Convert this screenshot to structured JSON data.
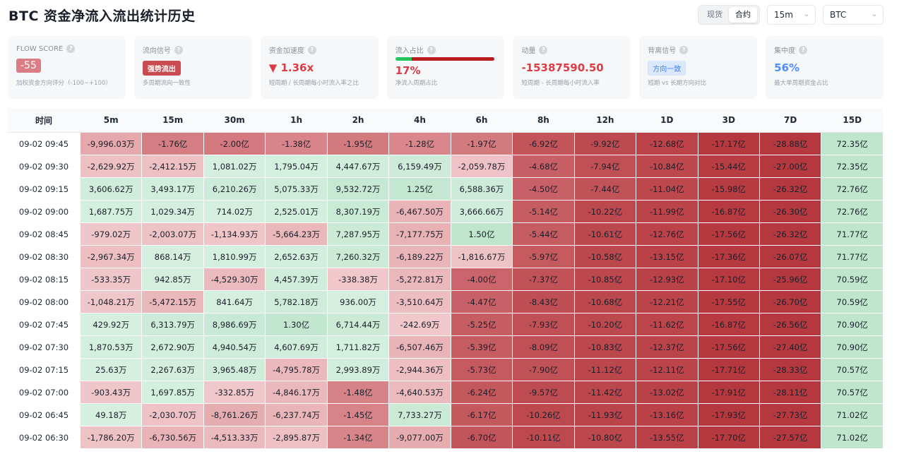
{
  "header": {
    "title": "BTC 资金净流入流出统计历史",
    "market_tabs": [
      {
        "label": "现货",
        "active": false
      },
      {
        "label": "合约",
        "active": true
      }
    ],
    "interval": "15m",
    "symbol": "BTC",
    "chevron_icon": "chevron-down-icon"
  },
  "cards": [
    {
      "id": "flow-score",
      "label": "FLOW SCORE",
      "value": "-55",
      "desc": "加权资金方向评分（-100~+100）",
      "style": "badge-score"
    },
    {
      "id": "flow-signal",
      "label": "流向信号",
      "value": "强势流出",
      "desc": "多周期流向一致性",
      "style": "badge-signal"
    },
    {
      "id": "acceleration",
      "label": "资金加速度",
      "value": "▼ 1.36x",
      "desc": "短周期 / 长周期每小时流入率之比",
      "style": "val-red"
    },
    {
      "id": "inflow-ratio",
      "label": "流入占比",
      "value": "17%",
      "desc": "净流入周期占比",
      "style": "val-red",
      "ratio": 0.17
    },
    {
      "id": "momentum",
      "label": "动量",
      "value": "-15387590.50",
      "desc": "短周期 - 长周期每小时流入率",
      "style": "val-red"
    },
    {
      "id": "divergence",
      "label": "背离信号",
      "value": "方向一致",
      "desc": "短期 vs 长期方向对比",
      "style": "badge-blue"
    },
    {
      "id": "concentration",
      "label": "集中度",
      "value": "56%",
      "desc": "最大单周期资金占比",
      "style": "val-blue"
    }
  ],
  "colors": {
    "negative_strong": "#b5383e",
    "negative_mid": "#dc8e93",
    "negative_light": "#f0c9cc",
    "positive_light": "#d6f0e0",
    "positive_mid": "#bfe5cd"
  },
  "table": {
    "headers": [
      "时间",
      "5m",
      "15m",
      "30m",
      "1h",
      "2h",
      "4h",
      "6h",
      "8h",
      "12h",
      "1D",
      "3D",
      "7D",
      "15D"
    ],
    "rows": [
      {
        "time": "09-02 09:45",
        "cells": [
          "-9,996.03万",
          "-1.76亿",
          "-2.00亿",
          "-1.38亿",
          "-1.95亿",
          "-1.28亿",
          "-1.97亿",
          "-6.92亿",
          "-9.92亿",
          "-12.68亿",
          "-17.17亿",
          "-28.88亿",
          "72.35亿"
        ]
      },
      {
        "time": "09-02 09:30",
        "cells": [
          "-2,629.92万",
          "-2,412.15万",
          "1,081.02万",
          "1,795.04万",
          "4,447.67万",
          "6,159.49万",
          "-2,059.78万",
          "-4.68亿",
          "-7.94亿",
          "-10.84亿",
          "-15.44亿",
          "-27.00亿",
          "72.35亿"
        ]
      },
      {
        "time": "09-02 09:15",
        "cells": [
          "3,606.62万",
          "3,493.17万",
          "6,210.26万",
          "5,075.33万",
          "9,532.72万",
          "1.25亿",
          "6,588.36万",
          "-4.50亿",
          "-7.44亿",
          "-11.04亿",
          "-15.98亿",
          "-26.32亿",
          "72.76亿"
        ]
      },
      {
        "time": "09-02 09:00",
        "cells": [
          "1,687.75万",
          "1,029.34万",
          "714.02万",
          "2,525.01万",
          "8,307.19万",
          "-6,467.50万",
          "3,666.66万",
          "-5.14亿",
          "-10.22亿",
          "-11.99亿",
          "-16.87亿",
          "-26.30亿",
          "72.76亿"
        ]
      },
      {
        "time": "09-02 08:45",
        "cells": [
          "-979.02万",
          "-2,003.07万",
          "-1,134.93万",
          "-5,664.23万",
          "7,287.95万",
          "-7,177.75万",
          "1.50亿",
          "-5.44亿",
          "-10.61亿",
          "-12.76亿",
          "-17.56亿",
          "-26.32亿",
          "71.77亿"
        ]
      },
      {
        "time": "09-02 08:30",
        "cells": [
          "-2,967.34万",
          "868.14万",
          "1,810.99万",
          "2,652.63万",
          "7,260.32万",
          "-6,189.22万",
          "-1,816.67万",
          "-5.97亿",
          "-10.58亿",
          "-13.15亿",
          "-17.36亿",
          "-26.07亿",
          "71.77亿"
        ]
      },
      {
        "time": "09-02 08:15",
        "cells": [
          "-533.35万",
          "942.85万",
          "-4,529.30万",
          "4,457.39万",
          "-338.38万",
          "-5,272.81万",
          "-4.00亿",
          "-7.37亿",
          "-10.85亿",
          "-12.93亿",
          "-17.10亿",
          "-25.96亿",
          "70.59亿"
        ]
      },
      {
        "time": "09-02 08:00",
        "cells": [
          "-1,048.21万",
          "-5,472.15万",
          "841.64万",
          "5,782.18万",
          "936.00万",
          "-3,510.64万",
          "-4.47亿",
          "-8.43亿",
          "-10.68亿",
          "-12.21亿",
          "-17.55亿",
          "-26.70亿",
          "70.59亿"
        ]
      },
      {
        "time": "09-02 07:45",
        "cells": [
          "429.92万",
          "6,313.79万",
          "8,986.69万",
          "1.30亿",
          "6,714.44万",
          "-242.69万",
          "-5.25亿",
          "-7.93亿",
          "-10.20亿",
          "-11.62亿",
          "-16.87亿",
          "-26.56亿",
          "70.90亿"
        ]
      },
      {
        "time": "09-02 07:30",
        "cells": [
          "1,870.53万",
          "2,672.90万",
          "4,940.54万",
          "4,607.69万",
          "1,711.82万",
          "-6,507.46万",
          "-5.39亿",
          "-8.09亿",
          "-10.83亿",
          "-12.37亿",
          "-17.56亿",
          "-27.40亿",
          "70.90亿"
        ]
      },
      {
        "time": "09-02 07:15",
        "cells": [
          "25.63万",
          "2,267.63万",
          "3,965.48万",
          "-4,795.78万",
          "2,993.89万",
          "-2,944.36万",
          "-5.73亿",
          "-7.90亿",
          "-11.12亿",
          "-12.11亿",
          "-17.71亿",
          "-28.33亿",
          "70.57亿"
        ]
      },
      {
        "time": "09-02 07:00",
        "cells": [
          "-903.43万",
          "1,697.85万",
          "-332.85万",
          "-4,846.17万",
          "-1.48亿",
          "-4,640.53万",
          "-6.24亿",
          "-9.57亿",
          "-11.42亿",
          "-13.02亿",
          "-17.91亿",
          "-28.11亿",
          "70.57亿"
        ]
      },
      {
        "time": "09-02 06:45",
        "cells": [
          "49.18万",
          "-2,030.70万",
          "-8,761.26万",
          "-6,237.74万",
          "-1.45亿",
          "7,733.27万",
          "-6.17亿",
          "-10.26亿",
          "-11.93亿",
          "-13.16亿",
          "-17.93亿",
          "-27.73亿",
          "71.02亿"
        ]
      },
      {
        "time": "09-02 06:30",
        "cells": [
          "-1,786.20万",
          "-6,730.56万",
          "-4,513.33万",
          "-2,895.87万",
          "-1.34亿",
          "-9,077.00万",
          "-6.70亿",
          "-10.11亿",
          "-10.80亿",
          "-13.55亿",
          "-17.70亿",
          "-27.57亿",
          "71.02亿"
        ]
      }
    ]
  }
}
